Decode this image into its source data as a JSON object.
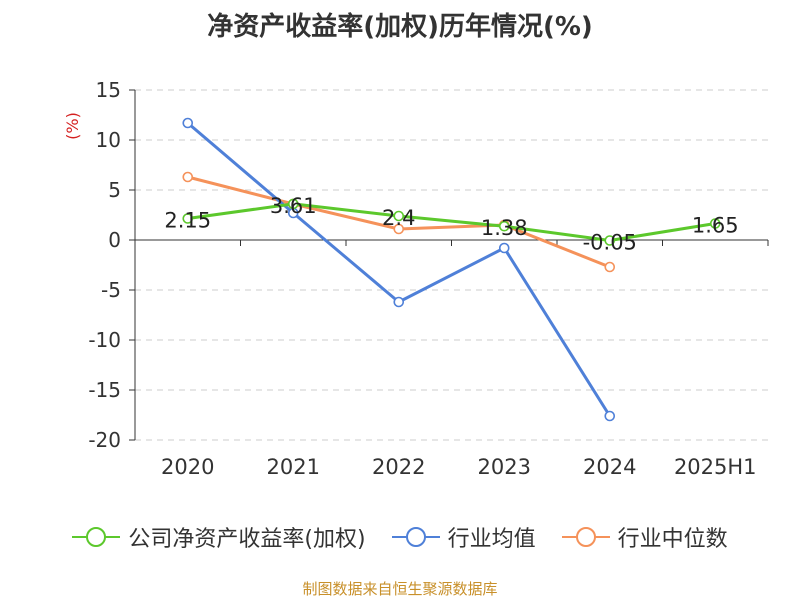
{
  "title": "净资产收益率(加权)历年情况(%)",
  "source": "制图数据来自恒生聚源数据库",
  "chart_data": {
    "type": "line",
    "title": "净资产收益率(加权)历年情况(%)",
    "ylabel": "(%)",
    "categories": [
      "2020",
      "2021",
      "2022",
      "2023",
      "2024",
      "2025H1"
    ],
    "ylim": [
      -20,
      15
    ],
    "yticks": [
      15,
      10,
      5,
      0,
      -5,
      -10,
      -15,
      -20
    ],
    "grid": true,
    "legend_position": "bottom",
    "series": [
      {
        "name": "公司净资产收益率(加权)",
        "color": "#5cc82c",
        "values": [
          2.15,
          3.61,
          2.4,
          1.38,
          -0.05,
          1.65
        ],
        "labels": true
      },
      {
        "name": "行业均值",
        "color": "#4f80d8",
        "values": [
          11.7,
          2.7,
          -6.2,
          -0.8,
          -17.6,
          null
        ],
        "labels": false
      },
      {
        "name": "行业中位数",
        "color": "#f5925a",
        "values": [
          6.3,
          3.6,
          1.1,
          1.5,
          -2.7,
          null
        ],
        "labels": false
      }
    ]
  }
}
